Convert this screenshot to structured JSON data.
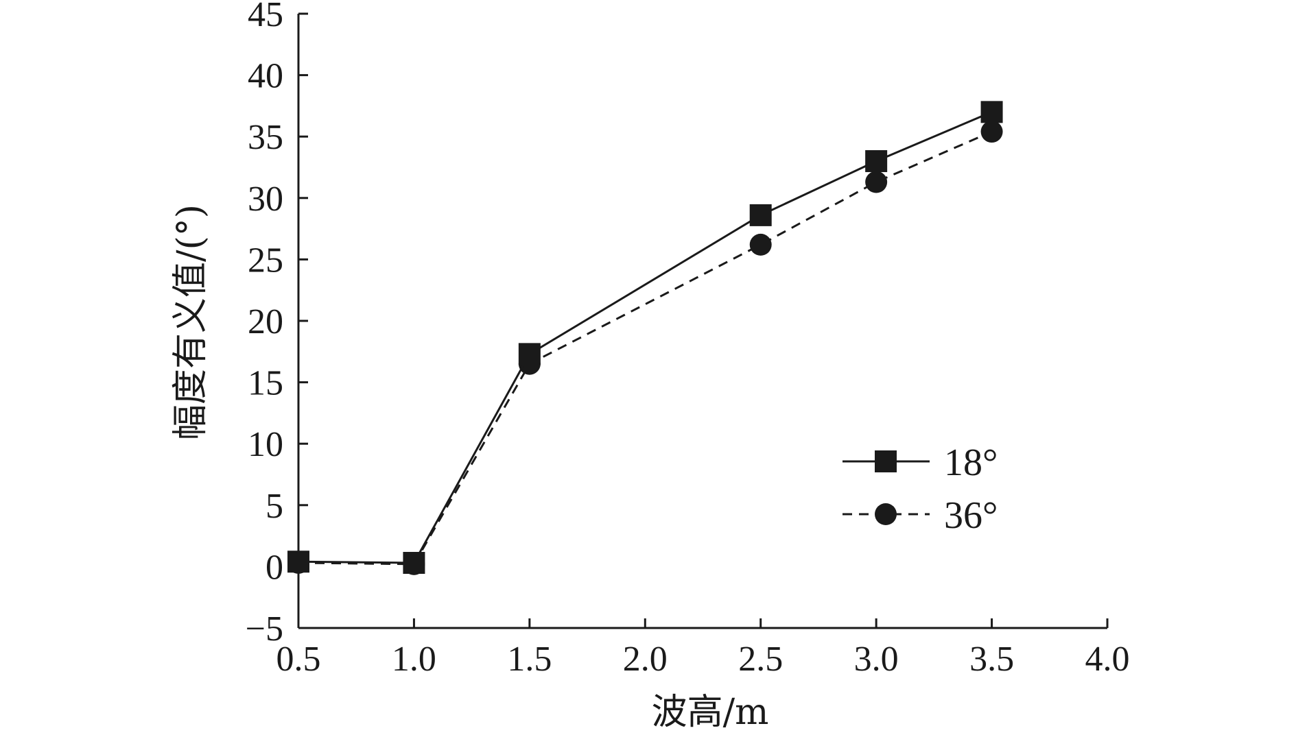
{
  "chart_data": {
    "type": "line",
    "xlabel": "波高/m",
    "ylabel": "幅度有义值/(°)",
    "x_ticks": [
      0.5,
      1.0,
      1.5,
      2.0,
      2.5,
      3.0,
      3.5,
      4.0
    ],
    "x_tick_labels": [
      "0.5",
      "1.0",
      "1.5",
      "2.0",
      "2.5",
      "3.0",
      "3.5",
      "4.0"
    ],
    "y_ticks": [
      -5,
      0,
      5,
      10,
      15,
      20,
      25,
      30,
      35,
      40,
      45
    ],
    "y_tick_labels": [
      "−5",
      "0",
      "5",
      "10",
      "15",
      "20",
      "25",
      "30",
      "35",
      "40",
      "45"
    ],
    "xlim": [
      0.5,
      4.0
    ],
    "ylim": [
      -5,
      45
    ],
    "grid": false,
    "legend_position": "right-center",
    "series": [
      {
        "name": "18°",
        "marker": "square",
        "line_style": "solid",
        "color": "#1a1a1a",
        "points": [
          [
            0.5,
            0.4
          ],
          [
            1.0,
            0.3
          ],
          [
            1.5,
            17.3
          ],
          [
            2.5,
            28.6
          ],
          [
            3.0,
            33.0
          ],
          [
            3.5,
            37.0
          ]
        ]
      },
      {
        "name": "36°",
        "marker": "circle",
        "line_style": "dashed",
        "color": "#1a1a1a",
        "points": [
          [
            0.5,
            0.3
          ],
          [
            1.0,
            0.2
          ],
          [
            1.5,
            16.5
          ],
          [
            2.5,
            26.2
          ],
          [
            3.0,
            31.3
          ],
          [
            3.5,
            35.4
          ]
        ]
      }
    ]
  }
}
